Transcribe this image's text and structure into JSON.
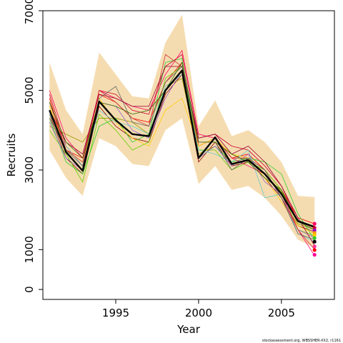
{
  "chart_data": {
    "type": "line",
    "title": "",
    "xlabel": "Year",
    "ylabel": "Recruits",
    "xlim": [
      1990.6,
      2008.2
    ],
    "ylim": [
      -250,
      7000
    ],
    "x_ticks": [
      1995,
      2000,
      2005
    ],
    "x_tick_labels": [
      "1995",
      "2000",
      "2005"
    ],
    "y_ticks": [
      0,
      1000,
      3000,
      5000,
      7000
    ],
    "y_tick_labels": [
      "0",
      "1000",
      "3000",
      "5000",
      "7000"
    ],
    "grid": false,
    "legend": "none",
    "footnote": "stockassessment.org, WBSSHER-XX2, r1161",
    "colors": {
      "band": "#f5dcb0",
      "main": "#000000",
      "series": [
        "#ff0000",
        "#cc0033",
        "#8b0000",
        "#999900",
        "#66cc00",
        "#33cc33",
        "#ffcc00",
        "#9966cc",
        "#66cccc",
        "#ff0066",
        "#cc3333",
        "#990033",
        "#666666",
        "#336600"
      ]
    },
    "x": [
      1991,
      1992,
      1993,
      1994,
      1995,
      1996,
      1997,
      1998,
      1999,
      2000,
      2001,
      2002,
      2003,
      2004,
      2005,
      2006,
      2007
    ],
    "band": {
      "upper": [
        5700,
        4500,
        3900,
        5950,
        5400,
        4850,
        4800,
        6200,
        6900,
        4100,
        4750,
        3850,
        4000,
        3700,
        3200,
        2350,
        2320
      ],
      "lower": [
        3500,
        2800,
        2350,
        3800,
        3600,
        3150,
        3100,
        4000,
        4300,
        2650,
        3100,
        2500,
        2600,
        2300,
        1850,
        1250,
        1050
      ]
    },
    "main_series": [
      4500,
      3450,
      2980,
      4720,
      4250,
      3900,
      3850,
      5000,
      5500,
      3300,
      3820,
      3150,
      3250,
      2900,
      2400,
      1720,
      1570
    ],
    "series": [
      {
        "values": [
          4800,
          3500,
          3300,
          4900,
          4700,
          4300,
          4200,
          5200,
          5700,
          3600,
          3800,
          3300,
          3400,
          3000,
          2500,
          1800,
          1650
        ]
      },
      {
        "values": [
          4900,
          3600,
          3100,
          5000,
          4900,
          4500,
          4400,
          5600,
          5900,
          3800,
          3900,
          3600,
          3500,
          3100,
          2600,
          1700,
          1550
        ]
      },
      {
        "values": [
          4400,
          3300,
          2900,
          4600,
          4100,
          3800,
          3700,
          4900,
          5400,
          3200,
          3700,
          3100,
          3200,
          2800,
          2300,
          1600,
          1450
        ]
      },
      {
        "values": [
          4100,
          3900,
          3700,
          4300,
          4300,
          4200,
          3900,
          5100,
          5300,
          3400,
          3600,
          3200,
          3300,
          2900,
          2450,
          1650,
          1500
        ]
      },
      {
        "values": [
          4000,
          3400,
          2700,
          4400,
          4000,
          3500,
          3700,
          5300,
          5600,
          3500,
          3500,
          3000,
          3200,
          3000,
          2500,
          1500,
          1350
        ]
      },
      {
        "values": [
          4300,
          3200,
          2900,
          4100,
          4300,
          3700,
          3900,
          5700,
          5800,
          3300,
          3600,
          3200,
          3300,
          3200,
          2900,
          1900,
          1250
        ]
      },
      {
        "values": [
          4600,
          3500,
          3200,
          4800,
          4200,
          3800,
          3600,
          4500,
          4800,
          3600,
          3800,
          3400,
          3300,
          2800,
          2200,
          1600,
          1400
        ]
      },
      {
        "values": [
          4200,
          3300,
          3000,
          4700,
          4600,
          4000,
          3800,
          4800,
          5500,
          3300,
          3600,
          3100,
          3400,
          2700,
          2400,
          1500,
          1300
        ]
      },
      {
        "values": [
          4400,
          3600,
          3100,
          4500,
          4200,
          4100,
          3900,
          5100,
          5400,
          3500,
          3400,
          3200,
          3500,
          2300,
          2400,
          1400,
          1200
        ]
      },
      {
        "values": [
          5000,
          3800,
          3300,
          5000,
          4800,
          4600,
          4500,
          5400,
          6000,
          3900,
          3800,
          3300,
          3100,
          2900,
          2400,
          1500,
          850
        ]
      },
      {
        "values": [
          4700,
          3500,
          3200,
          5000,
          4700,
          4300,
          4100,
          5900,
          5600,
          3300,
          3800,
          3300,
          3300,
          3000,
          2300,
          1500,
          1000
        ]
      },
      {
        "values": [
          4500,
          3700,
          3400,
          4900,
          4800,
          4600,
          4600,
          5600,
          5600,
          3800,
          3900,
          3400,
          3600,
          3200,
          2600,
          1800,
          1100
        ]
      },
      {
        "values": [
          4300,
          3500,
          3100,
          4800,
          5100,
          4200,
          4100,
          5200,
          5600,
          3700,
          3700,
          3000,
          3300,
          3000,
          2300,
          1400,
          1250
        ]
      },
      {
        "values": [
          4700,
          3700,
          3300,
          4700,
          4600,
          4400,
          4500,
          5000,
          5700,
          3700,
          3700,
          3400,
          3200,
          2800,
          2500,
          1700,
          1500
        ]
      }
    ],
    "end_points": [
      {
        "value": 1650,
        "color": "#ff0066"
      },
      {
        "value": 1550,
        "color": "#cc0033"
      },
      {
        "value": 1480,
        "color": "#9900cc"
      },
      {
        "value": 1420,
        "color": "#ff9900"
      },
      {
        "value": 1360,
        "color": "#ffcc00"
      },
      {
        "value": 1290,
        "color": "#33cc33"
      },
      {
        "value": 1200,
        "color": "#000000"
      },
      {
        "value": 1080,
        "color": "#ff3399"
      },
      {
        "value": 990,
        "color": "#ff0000"
      },
      {
        "value": 870,
        "color": "#ff0099"
      }
    ]
  }
}
